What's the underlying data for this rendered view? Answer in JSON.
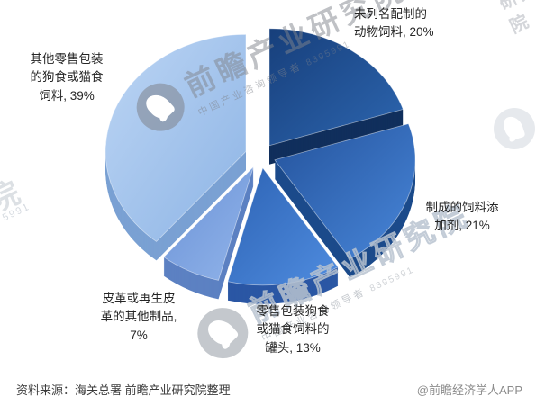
{
  "chart_data": {
    "type": "pie",
    "style": "3d-exploded",
    "title": "",
    "legend": "none",
    "start_angle_deg": 0,
    "direction": "clockwise",
    "unit": "%",
    "slices": [
      {
        "label": "未列名配制的动物饲料",
        "value": 20,
        "label_lines": [
          "未列名配制的",
          "动物饲料, 20%"
        ],
        "color_top": [
          "#173f7b",
          "#2d66b0"
        ],
        "color_side": "#102f5c"
      },
      {
        "label": "制成的饲料添加剂",
        "value": 21,
        "label_lines": [
          "制成的饲料添",
          "加剂, 21%"
        ],
        "color_top": [
          "#24539c",
          "#4886d9"
        ],
        "color_side": "#1c4b8b"
      },
      {
        "label": "零售包装狗食或猫食饲料的罐头",
        "value": 13,
        "label_lines": [
          "零售包装狗食",
          "或猫食饲料的",
          "罐头, 13%"
        ],
        "color_top": [
          "#2d63b4",
          "#4f8cdf"
        ],
        "color_side": "#2a57a4"
      },
      {
        "label": "皮革或再生皮革的其他制品",
        "value": 7,
        "label_lines": [
          "皮革或再生皮",
          "革的其他制品,",
          "7%"
        ],
        "color_top": [
          "#6b92d6",
          "#91b4ea"
        ],
        "color_side": "#5c81c2"
      },
      {
        "label": "其他零售包装的狗食或猫食饲料",
        "value": 39,
        "label_lines": [
          "其他零售包装",
          "的狗食或猫食",
          "饲料, 39%"
        ],
        "color_top": [
          "#bcd5f4",
          "#8db4e5"
        ],
        "color_side": "#7aa1d3"
      }
    ]
  },
  "footer": {
    "source": "资料来源：海关总署 前瞻产业研究院整理",
    "credit": "@前瞻经济学人APP"
  },
  "watermark": {
    "brand": "前瞻产业研究院",
    "tagline": "中国产业咨询领导者",
    "number_top": "8395991",
    "number_bottom": "8395991",
    "corner_text": "研究院",
    "edge_glyph": "院",
    "edge_number": "5991"
  }
}
